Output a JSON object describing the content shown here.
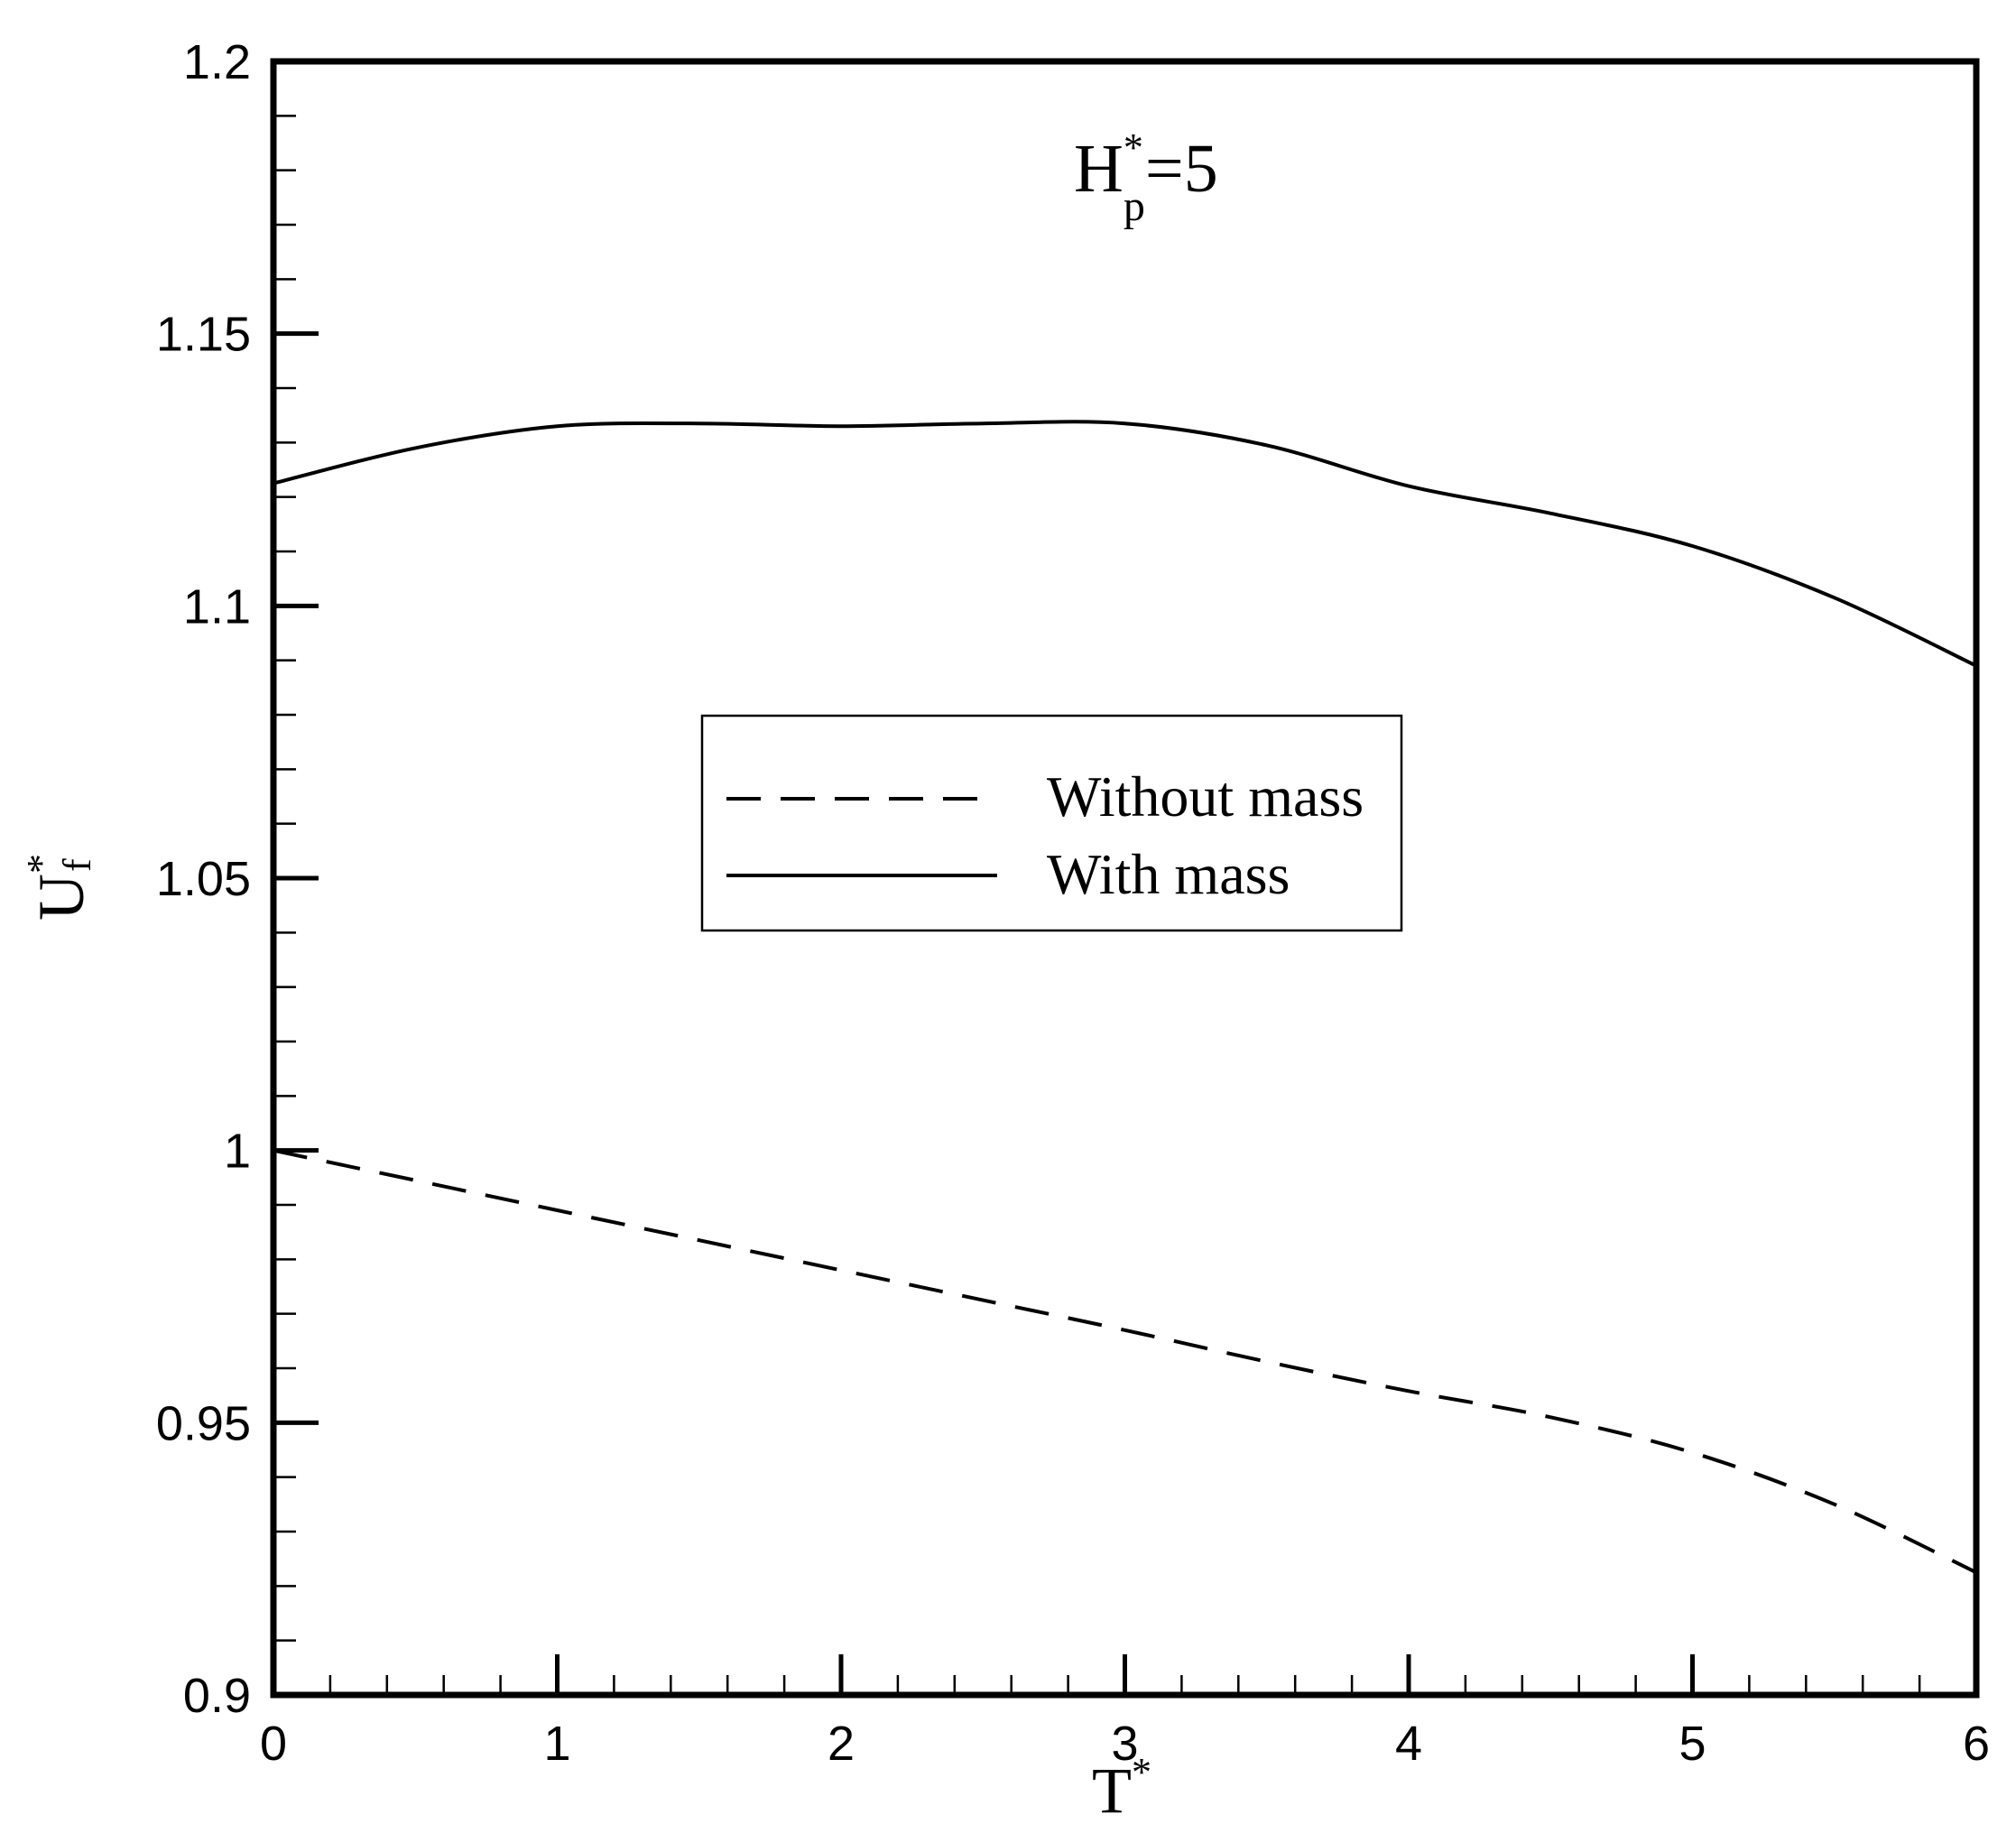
{
  "chart_data": {
    "type": "line",
    "title": {
      "main": "H",
      "superscript": "*",
      "subscript": "p",
      "suffix": "=5"
    },
    "xlabel": {
      "main": "T",
      "superscript": "*"
    },
    "ylabel": {
      "main": "U",
      "superscript": "*",
      "subscript": "f"
    },
    "xlim": [
      0,
      6
    ],
    "ylim": [
      0.9,
      1.2
    ],
    "x_ticks": [
      0,
      1,
      2,
      3,
      4,
      5,
      6
    ],
    "x_tick_labels": [
      "0",
      "1",
      "2",
      "3",
      "4",
      "5",
      "6"
    ],
    "x_minor_step": 0.2,
    "y_ticks": [
      0.9,
      0.95,
      1.0,
      1.05,
      1.1,
      1.15,
      1.2
    ],
    "y_tick_labels": [
      "0.9",
      "0.95",
      "1",
      "1.05",
      "1.1",
      "1.15",
      "1.2"
    ],
    "y_minor_step": 0.01,
    "grid": false,
    "legend_position": "center",
    "series": [
      {
        "name": "Without mass",
        "line_style": "dashed",
        "color": "#000000",
        "x": [
          0,
          0.5,
          1,
          1.5,
          2,
          2.5,
          3,
          3.5,
          4,
          4.5,
          5,
          5.5,
          6
        ],
        "y": [
          1.0,
          0.9945,
          0.989,
          0.9835,
          0.978,
          0.9725,
          0.967,
          0.9612,
          0.9558,
          0.951,
          0.9445,
          0.935,
          0.9225
        ]
      },
      {
        "name": "With mass",
        "line_style": "solid",
        "color": "#000000",
        "x": [
          0,
          0.5,
          1,
          1.5,
          2,
          2.5,
          3,
          3.5,
          4,
          4.5,
          5,
          5.5,
          6
        ],
        "y": [
          1.1225,
          1.129,
          1.133,
          1.1335,
          1.133,
          1.1335,
          1.1335,
          1.1295,
          1.122,
          1.117,
          1.111,
          1.1015,
          1.089
        ]
      }
    ]
  }
}
